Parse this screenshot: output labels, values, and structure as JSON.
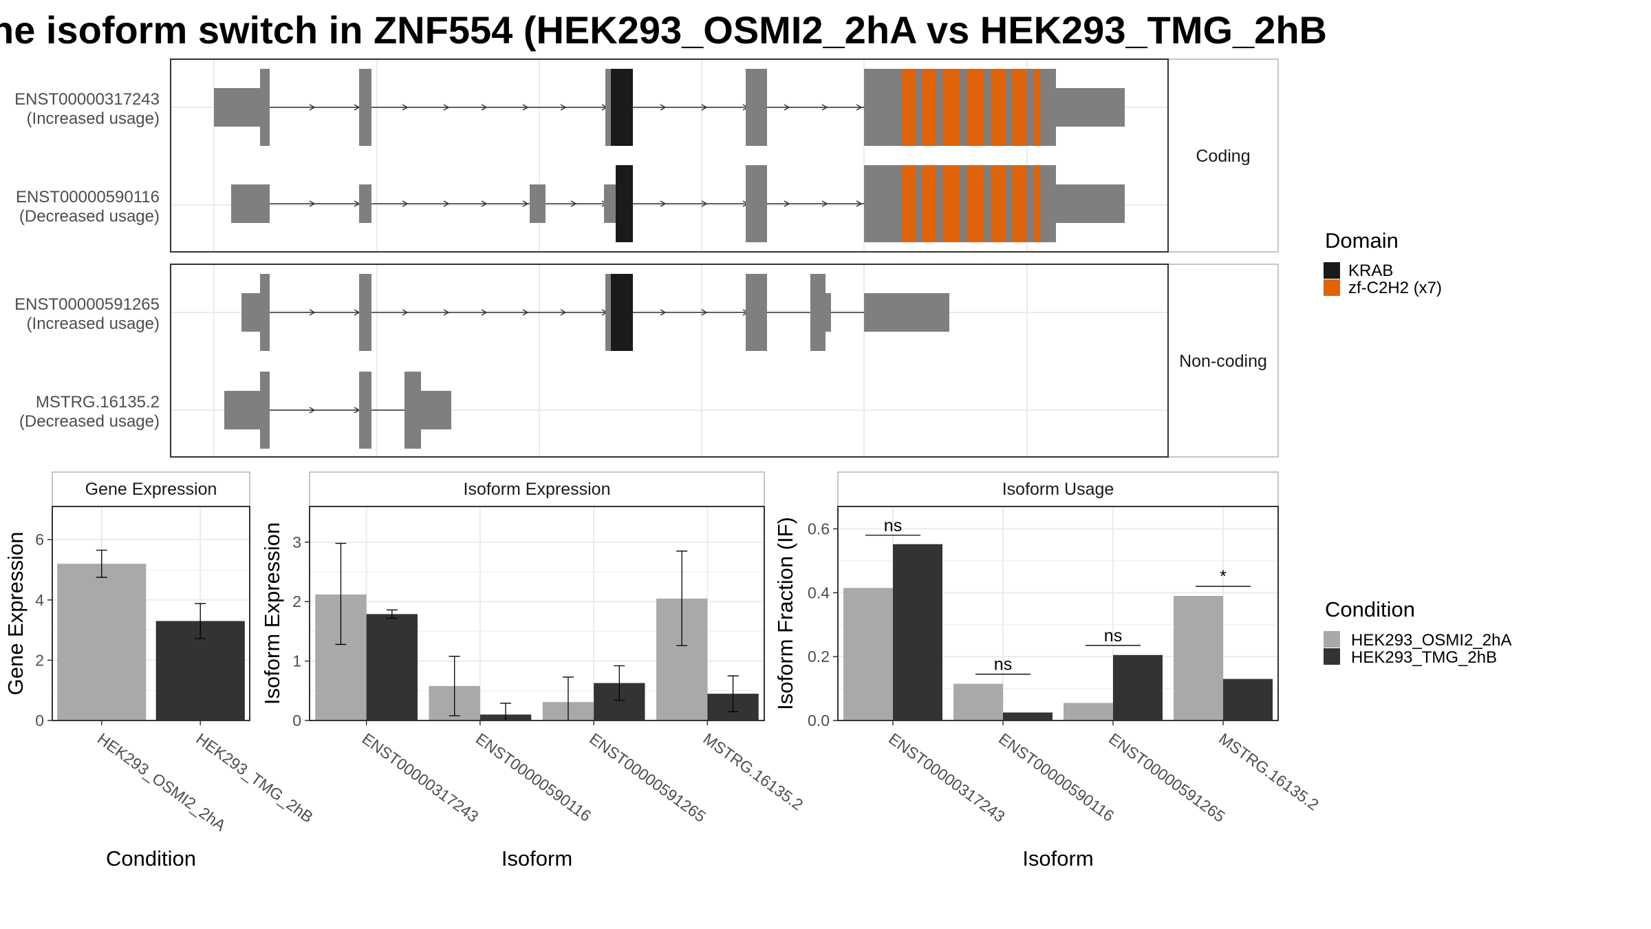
{
  "title": "he isoform switch in ZNF554 (HEK293_OSMI2_2hA vs HEK293_TMG_2hB",
  "colors": {
    "exon": "#7f7f7f",
    "krab": "#1a1a1a",
    "znf": "#e0640a",
    "cond_a": "#a9a9a9",
    "cond_b": "#333333",
    "grid": "#ebebeb",
    "frame": "#333333",
    "strip_border": "#b3b3b3",
    "text_dark": "#4d4d4d"
  },
  "chart_data": [
    {
      "type": "gene-structure",
      "facets": [
        {
          "label": "Coding",
          "isoforms": [
            {
              "id": "ENST00000317243",
              "usage": "(Increased usage)"
            },
            {
              "id": "ENST00000590116",
              "usage": "(Decreased usage)"
            }
          ]
        },
        {
          "label": "Non-coding",
          "isoforms": [
            {
              "id": "ENST00000591265",
              "usage": "(Increased usage)"
            },
            {
              "id": "MSTRG.16135.2",
              "usage": "(Decreased usage)"
            }
          ]
        }
      ],
      "legend": {
        "title": "Domain",
        "items": [
          {
            "label": "KRAB",
            "color": "#1a1a1a"
          },
          {
            "label": "zf-C2H2 (x7)",
            "color": "#e0640a"
          }
        ]
      }
    },
    {
      "type": "bar",
      "panel": "Gene Expression",
      "xlabel": "Condition",
      "ylabel": "Gene Expression",
      "categories": [
        "HEK293_OSMI2_2hA",
        "HEK293_TMG_2hB"
      ],
      "values": [
        5.2,
        3.3
      ],
      "err_low": [
        4.75,
        2.72
      ],
      "err_high": [
        5.65,
        3.88
      ],
      "ylim": [
        0,
        7.1
      ],
      "yticks": [
        0,
        2,
        4,
        6
      ]
    },
    {
      "type": "bar",
      "panel": "Isoform Expression",
      "xlabel": "Isoform",
      "ylabel": "Isoform Expression",
      "categories": [
        "ENST00000317243",
        "ENST00000590116",
        "ENST00000591265",
        "MSTRG.16135.2"
      ],
      "series": [
        {
          "name": "HEK293_OSMI2_2hA",
          "values": [
            2.12,
            0.58,
            0.31,
            2.05
          ],
          "err_low": [
            1.28,
            0.08,
            0.0,
            1.26
          ],
          "err_high": [
            2.98,
            1.08,
            0.73,
            2.85
          ]
        },
        {
          "name": "HEK293_TMG_2hB",
          "values": [
            1.79,
            0.1,
            0.63,
            0.45
          ],
          "err_low": [
            1.72,
            0.0,
            0.34,
            0.15
          ],
          "err_high": [
            1.86,
            0.29,
            0.92,
            0.75
          ]
        }
      ],
      "ylim": [
        0,
        3.6
      ],
      "yticks": [
        0,
        1,
        2,
        3
      ]
    },
    {
      "type": "bar",
      "panel": "Isoform Usage",
      "xlabel": "Isoform",
      "ylabel": "Isoform Fraction (IF)",
      "categories": [
        "ENST00000317243",
        "ENST00000590116",
        "ENST00000591265",
        "MSTRG.16135.2"
      ],
      "series": [
        {
          "name": "HEK293_OSMI2_2hA",
          "values": [
            0.415,
            0.115,
            0.055,
            0.39
          ]
        },
        {
          "name": "HEK293_TMG_2hB",
          "values": [
            0.552,
            0.025,
            0.205,
            0.13
          ]
        }
      ],
      "significance": [
        {
          "category": "ENST00000317243",
          "label": "ns",
          "y": 0.58
        },
        {
          "category": "ENST00000590116",
          "label": "ns",
          "y": 0.145
        },
        {
          "category": "ENST00000591265",
          "label": "ns",
          "y": 0.235
        },
        {
          "category": "MSTRG.16135.2",
          "label": "*",
          "y": 0.42
        }
      ],
      "ylim": [
        0,
        0.67
      ],
      "yticks": [
        "0.0",
        "0.2",
        "0.4",
        "0.6"
      ]
    }
  ],
  "condition_legend": {
    "title": "Condition",
    "items": [
      {
        "label": "HEK293_OSMI2_2hA",
        "color": "#a9a9a9"
      },
      {
        "label": "HEK293_TMG_2hB",
        "color": "#333333"
      }
    ]
  }
}
